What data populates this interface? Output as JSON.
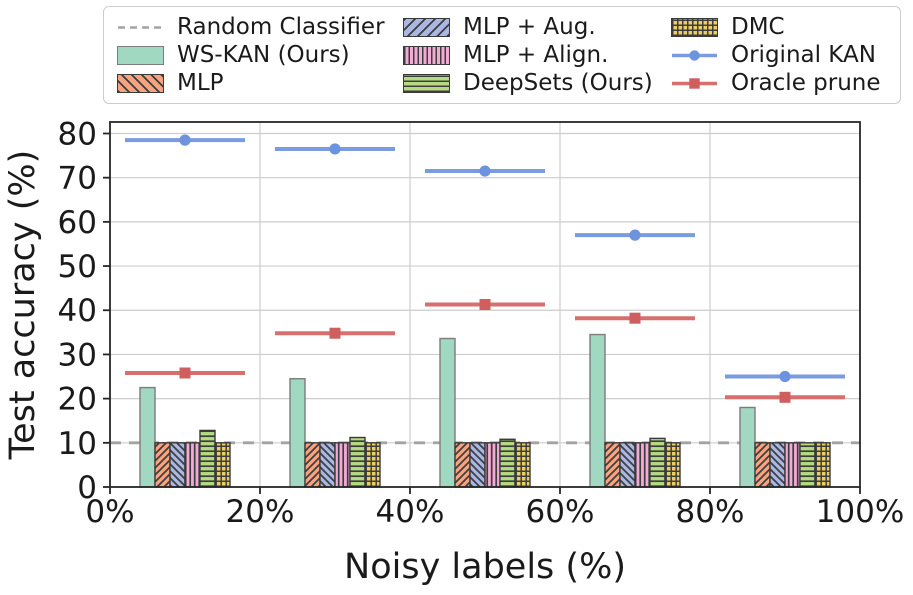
{
  "figure": {
    "background": "#ffffff"
  },
  "legend": {
    "items": [
      {
        "label": "Random Classifier",
        "swatch": "dashed-line",
        "color": "#a3a3a3"
      },
      {
        "label": "WS-KAN (Ours)",
        "swatch": "bar",
        "fill": "#a0d8c2",
        "edge": "#7c7c7c",
        "hatch": "none"
      },
      {
        "label": "MLP",
        "swatch": "bar",
        "fill": "#f9a27e",
        "edge": "#3a3a3a",
        "hatch": "diag"
      },
      {
        "label": "MLP + Aug.",
        "swatch": "bar",
        "fill": "#aab6e3",
        "edge": "#3a3a3a",
        "hatch": "backdiag"
      },
      {
        "label": "MLP + Align.",
        "swatch": "bar",
        "fill": "#f1abd4",
        "edge": "#3a3a3a",
        "hatch": "vertical"
      },
      {
        "label": "DeepSets (Ours)",
        "swatch": "bar",
        "fill": "#b5da82",
        "edge": "#3a3a3a",
        "hatch": "horizontal"
      },
      {
        "label": "DMC",
        "swatch": "bar",
        "fill": "#eccf62",
        "edge": "#3a3a3a",
        "hatch": "grid"
      },
      {
        "label": "Original KAN",
        "swatch": "line-circle",
        "color": "#7b9be0",
        "marker_color": "#6d92de"
      },
      {
        "label": "Oracle prune",
        "swatch": "line-square",
        "color": "#d76f6f",
        "marker_color": "#cf5e5e"
      }
    ]
  },
  "chart_data": {
    "type": "bar",
    "xlabel": "Noisy labels (%)",
    "ylabel": "Test accuracy (%)",
    "x": [
      10,
      30,
      50,
      70,
      90
    ],
    "x_ticks": [
      0,
      20,
      40,
      60,
      80,
      100
    ],
    "x_tick_labels": [
      "0%",
      "20%",
      "40%",
      "60%",
      "80%",
      "100%"
    ],
    "y_ticks": [
      0,
      10,
      20,
      30,
      40,
      50,
      60,
      70,
      80
    ],
    "y_tick_labels": [
      "0",
      "10",
      "20",
      "30",
      "40",
      "50",
      "60",
      "70",
      "80"
    ],
    "xlim": [
      0,
      100
    ],
    "ylim": [
      0,
      82.6
    ],
    "grid": true,
    "legend_position": "top",
    "reference_line": {
      "label": "Random Classifier",
      "y": 10,
      "color": "#a3a3a3"
    },
    "bar_width_pct": 2,
    "bar_series": [
      {
        "key": "ws-kan",
        "name": "WS-KAN (Ours)",
        "fill": "#a0d8c2",
        "edge": "#7c7c7c",
        "hatch": "none",
        "values": [
          22.5,
          24.5,
          33.6,
          34.5,
          18.0
        ]
      },
      {
        "key": "mlp",
        "name": "MLP",
        "fill": "#f9a27e",
        "edge": "#3a3a3a",
        "hatch": "diag",
        "values": [
          10,
          10,
          10,
          10,
          10
        ]
      },
      {
        "key": "mlp-aug",
        "name": "MLP + Aug.",
        "fill": "#aab6e3",
        "edge": "#3a3a3a",
        "hatch": "backdiag",
        "values": [
          10,
          10,
          10,
          10,
          10
        ]
      },
      {
        "key": "mlp-align",
        "name": "MLP + Align.",
        "fill": "#f1abd4",
        "edge": "#3a3a3a",
        "hatch": "vertical",
        "values": [
          10,
          10,
          10,
          10,
          10
        ]
      },
      {
        "key": "deepsets",
        "name": "DeepSets (Ours)",
        "fill": "#b5da82",
        "edge": "#3a3a3a",
        "hatch": "horizontal",
        "values": [
          12.8,
          11.2,
          10.8,
          11.0,
          10.0
        ]
      },
      {
        "key": "dmc",
        "name": "DMC",
        "fill": "#eccf62",
        "edge": "#3a3a3a",
        "hatch": "grid",
        "values": [
          10,
          10,
          10,
          10,
          10
        ]
      }
    ],
    "line_series": [
      {
        "key": "original-kan",
        "name": "Original KAN",
        "color": "#7b9be0",
        "marker": "circle",
        "marker_color": "#6d92de",
        "xerr": 8,
        "values": [
          78.5,
          76.5,
          71.5,
          57.0,
          25.0
        ]
      },
      {
        "key": "oracle-prune",
        "name": "Oracle prune",
        "color": "#d76f6f",
        "marker": "square",
        "marker_color": "#cf5e5e",
        "xerr": 8,
        "values": [
          25.8,
          34.8,
          41.3,
          38.2,
          20.3
        ]
      }
    ]
  }
}
